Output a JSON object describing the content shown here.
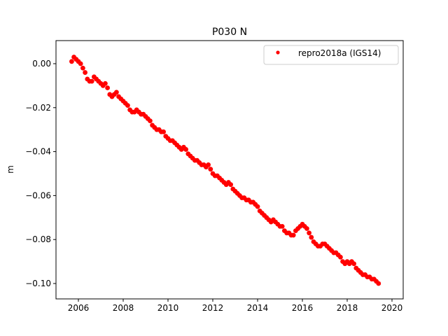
{
  "chart_data": {
    "type": "scatter",
    "title": "P030 N",
    "xlabel": "",
    "ylabel": "m",
    "xlim": [
      2005.0,
      2020.5
    ],
    "ylim": [
      -0.107,
      0.0105
    ],
    "xticks": [
      2006,
      2008,
      2010,
      2012,
      2014,
      2016,
      2018,
      2020
    ],
    "xtick_labels": [
      "2006",
      "2008",
      "2010",
      "2012",
      "2014",
      "2016",
      "2018",
      "2020"
    ],
    "yticks": [
      0.0,
      -0.02,
      -0.04,
      -0.06,
      -0.08,
      -0.1
    ],
    "ytick_labels": [
      "0.00",
      "−0.02",
      "−0.04",
      "−0.06",
      "−0.08",
      "−0.10"
    ],
    "grid": false,
    "legend_position": "top-right",
    "series": [
      {
        "name": "repro2018a (IGS14)",
        "color": "#ff0000",
        "marker": "dot",
        "x": [
          2005.7,
          2005.8,
          2005.9,
          2006.0,
          2006.1,
          2006.2,
          2006.3,
          2006.4,
          2006.5,
          2006.6,
          2006.7,
          2006.8,
          2006.9,
          2007.0,
          2007.1,
          2007.2,
          2007.3,
          2007.4,
          2007.5,
          2007.6,
          2007.7,
          2007.8,
          2007.9,
          2008.0,
          2008.1,
          2008.2,
          2008.3,
          2008.4,
          2008.5,
          2008.6,
          2008.7,
          2008.8,
          2008.9,
          2009.0,
          2009.1,
          2009.2,
          2009.3,
          2009.4,
          2009.5,
          2009.6,
          2009.7,
          2009.8,
          2009.9,
          2010.0,
          2010.1,
          2010.2,
          2010.3,
          2010.4,
          2010.5,
          2010.6,
          2010.7,
          2010.8,
          2010.9,
          2011.0,
          2011.1,
          2011.2,
          2011.3,
          2011.4,
          2011.5,
          2011.6,
          2011.7,
          2011.8,
          2011.9,
          2012.0,
          2012.1,
          2012.2,
          2012.3,
          2012.4,
          2012.5,
          2012.6,
          2012.7,
          2012.8,
          2012.9,
          2013.0,
          2013.1,
          2013.2,
          2013.3,
          2013.4,
          2013.5,
          2013.6,
          2013.7,
          2013.8,
          2013.9,
          2014.0,
          2014.1,
          2014.2,
          2014.3,
          2014.4,
          2014.5,
          2014.6,
          2014.7,
          2014.8,
          2014.9,
          2015.0,
          2015.1,
          2015.2,
          2015.3,
          2015.4,
          2015.5,
          2015.6,
          2015.7,
          2015.8,
          2015.9,
          2016.0,
          2016.1,
          2016.2,
          2016.3,
          2016.4,
          2016.5,
          2016.6,
          2016.7,
          2016.8,
          2016.9,
          2017.0,
          2017.1,
          2017.2,
          2017.3,
          2017.4,
          2017.5,
          2017.6,
          2017.7,
          2017.8,
          2017.9,
          2018.0,
          2018.1,
          2018.2,
          2018.3,
          2018.4,
          2018.5,
          2018.6,
          2018.7,
          2018.8,
          2018.9,
          2019.0,
          2019.1,
          2019.2,
          2019.3,
          2019.4
        ],
        "y": [
          0.001,
          0.003,
          0.002,
          0.001,
          0.0,
          -0.002,
          -0.004,
          -0.007,
          -0.008,
          -0.008,
          -0.006,
          -0.007,
          -0.008,
          -0.009,
          -0.01,
          -0.009,
          -0.011,
          -0.014,
          -0.015,
          -0.014,
          -0.013,
          -0.015,
          -0.016,
          -0.017,
          -0.018,
          -0.019,
          -0.021,
          -0.022,
          -0.022,
          -0.021,
          -0.022,
          -0.023,
          -0.023,
          -0.024,
          -0.025,
          -0.026,
          -0.028,
          -0.029,
          -0.03,
          -0.03,
          -0.031,
          -0.031,
          -0.033,
          -0.034,
          -0.035,
          -0.035,
          -0.036,
          -0.037,
          -0.038,
          -0.039,
          -0.038,
          -0.039,
          -0.041,
          -0.042,
          -0.043,
          -0.044,
          -0.044,
          -0.045,
          -0.046,
          -0.046,
          -0.047,
          -0.046,
          -0.048,
          -0.05,
          -0.051,
          -0.051,
          -0.052,
          -0.053,
          -0.054,
          -0.055,
          -0.054,
          -0.055,
          -0.057,
          -0.058,
          -0.059,
          -0.06,
          -0.061,
          -0.061,
          -0.062,
          -0.062,
          -0.063,
          -0.063,
          -0.064,
          -0.065,
          -0.067,
          -0.068,
          -0.069,
          -0.07,
          -0.071,
          -0.072,
          -0.071,
          -0.072,
          -0.073,
          -0.074,
          -0.074,
          -0.076,
          -0.077,
          -0.077,
          -0.078,
          -0.078,
          -0.076,
          -0.075,
          -0.074,
          -0.073,
          -0.074,
          -0.075,
          -0.077,
          -0.079,
          -0.081,
          -0.082,
          -0.083,
          -0.083,
          -0.082,
          -0.082,
          -0.083,
          -0.084,
          -0.085,
          -0.086,
          -0.086,
          -0.087,
          -0.088,
          -0.09,
          -0.091,
          -0.09,
          -0.091,
          -0.09,
          -0.091,
          -0.093,
          -0.094,
          -0.095,
          -0.096,
          -0.096,
          -0.097,
          -0.097,
          -0.098,
          -0.098,
          -0.099,
          -0.1
        ]
      }
    ]
  }
}
